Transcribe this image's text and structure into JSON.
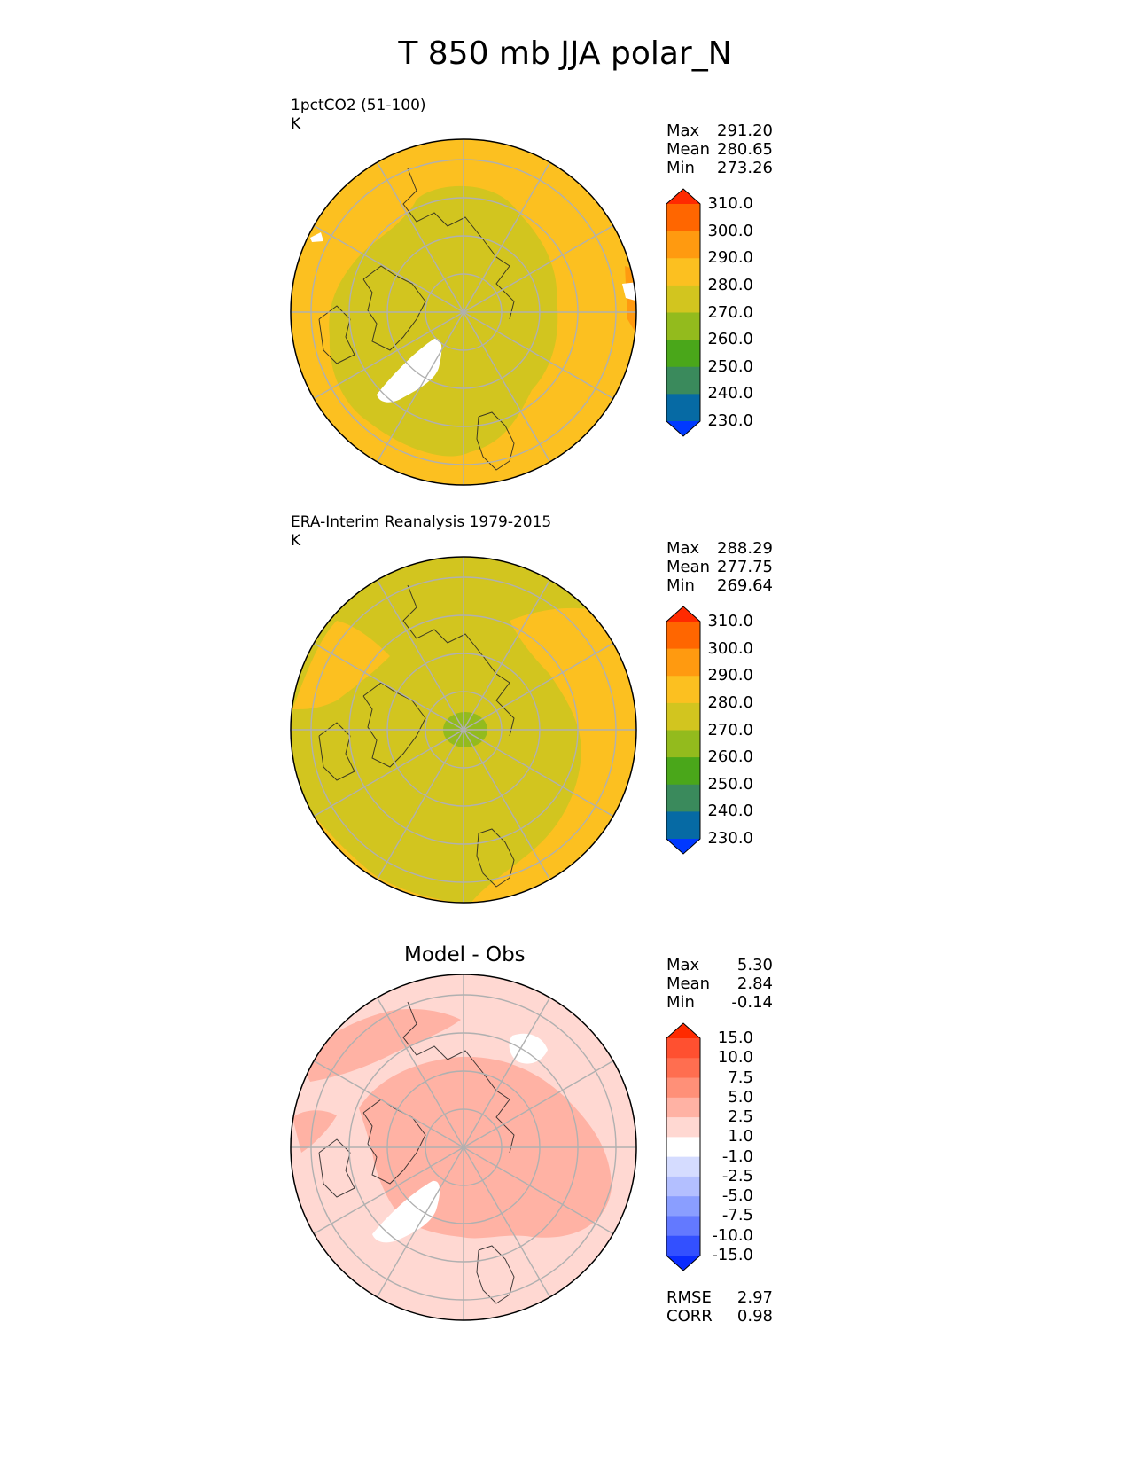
{
  "title": "T 850 mb JJA polar_N",
  "panels": [
    {
      "label_line1": "1pctCO2 (51-100)",
      "label_line2": "K",
      "stats": [
        {
          "name": "Max",
          "value": "291.20"
        },
        {
          "name": "Mean",
          "value": "280.65"
        },
        {
          "name": "Min",
          "value": "273.26"
        }
      ],
      "colorbar": {
        "ticks": [
          "310.0",
          "300.0",
          "290.0",
          "280.0",
          "270.0",
          "260.0",
          "250.0",
          "240.0",
          "230.0"
        ],
        "colors": [
          "#ff2a00",
          "#ff6600",
          "#ff9a10",
          "#fcc020",
          "#d2c51f",
          "#93bb1d",
          "#4aa71a",
          "#3a8a5c",
          "#066aa4",
          "#0039ff"
        ]
      }
    },
    {
      "label_line1": "ERA-Interim Reanalysis 1979-2015",
      "label_line2": "K",
      "stats": [
        {
          "name": "Max",
          "value": "288.29"
        },
        {
          "name": "Mean",
          "value": "277.75"
        },
        {
          "name": "Min",
          "value": "269.64"
        }
      ],
      "colorbar": {
        "ticks": [
          "310.0",
          "300.0",
          "290.0",
          "280.0",
          "270.0",
          "260.0",
          "250.0",
          "240.0",
          "230.0"
        ],
        "colors": [
          "#ff2a00",
          "#ff6600",
          "#ff9a10",
          "#fcc020",
          "#d2c51f",
          "#93bb1d",
          "#4aa71a",
          "#3a8a5c",
          "#066aa4",
          "#0039ff"
        ]
      }
    },
    {
      "subtitle": "Model - Obs",
      "stats": [
        {
          "name": "Max",
          "value": "5.30"
        },
        {
          "name": "Mean",
          "value": "2.84"
        },
        {
          "name": "Min",
          "value": "-0.14"
        }
      ],
      "colorbar": {
        "ticks": [
          "15.0",
          "10.0",
          "7.5",
          "5.0",
          "2.5",
          "1.0",
          "-1.0",
          "-2.5",
          "-5.0",
          "-7.5",
          "-10.0",
          "-15.0"
        ],
        "colors": [
          "#ff2a00",
          "#ff5030",
          "#ff6e50",
          "#ff9078",
          "#ffb2a4",
          "#ffd8d2",
          "#ffffff",
          "#d5dcff",
          "#b3bfff",
          "#8a9eff",
          "#6379ff",
          "#3350ff",
          "#0a2bff"
        ]
      },
      "metrics": [
        {
          "name": "RMSE",
          "value": "2.97"
        },
        {
          "name": "CORR",
          "value": "0.98"
        }
      ]
    }
  ],
  "chart_data": [
    {
      "type": "heatmap",
      "projection": "north polar stereographic",
      "variable": "T 850 mb",
      "units": "K",
      "colorbar_levels": [
        230,
        240,
        250,
        260,
        270,
        280,
        290,
        300,
        310
      ],
      "dominant_ranges_K": {
        "interior": [
          270,
          280
        ],
        "outer": [
          280,
          290
        ]
      }
    },
    {
      "type": "heatmap",
      "projection": "north polar stereographic",
      "variable": "T 850 mb",
      "units": "K",
      "colorbar_levels": [
        230,
        240,
        250,
        260,
        270,
        280,
        290,
        300,
        310
      ],
      "dominant_ranges_K": {
        "pole": [
          260,
          270
        ],
        "interior": [
          270,
          280
        ],
        "outer": [
          280,
          290
        ]
      }
    },
    {
      "type": "heatmap",
      "projection": "north polar stereographic",
      "variable": "T 850 mb difference",
      "units": "K",
      "colorbar_levels": [
        -15,
        -10,
        -7.5,
        -5,
        -2.5,
        -1,
        1,
        2.5,
        5,
        7.5,
        10,
        15
      ],
      "dominant_ranges_K": {
        "interior": [
          2.5,
          5
        ],
        "outer": [
          1,
          2.5
        ]
      }
    }
  ]
}
